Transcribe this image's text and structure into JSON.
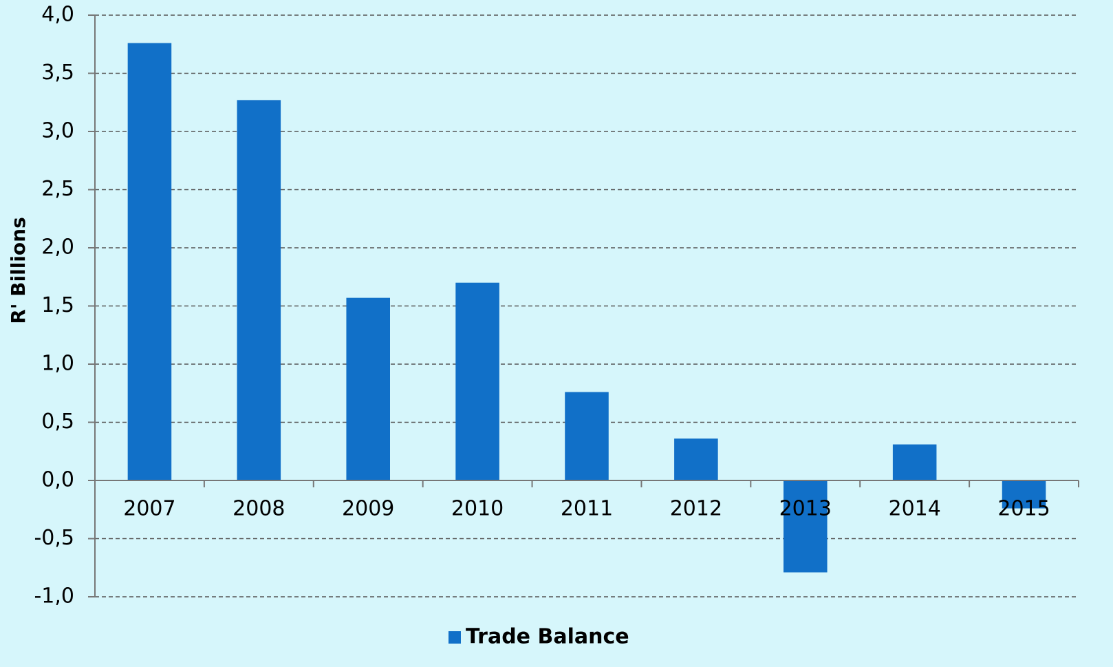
{
  "chart_data": {
    "type": "bar",
    "y_label": "R' Billions",
    "categories": [
      "2007",
      "2008",
      "2009",
      "2010",
      "2011",
      "2012",
      "2013",
      "2014",
      "2015"
    ],
    "series": [
      {
        "name": "Trade Balance",
        "color": "#1170c8",
        "values": [
          3.76,
          3.27,
          1.57,
          1.7,
          0.76,
          0.36,
          -0.79,
          0.31,
          -0.24
        ]
      }
    ],
    "ylim": [
      -1.0,
      4.0
    ],
    "yticks": [
      {
        "value": -1.0,
        "label": "-1,0"
      },
      {
        "value": -0.5,
        "label": "-0,5"
      },
      {
        "value": 0,
        "label": "0,0"
      },
      {
        "value": 0.5,
        "label": "0,5"
      },
      {
        "value": 1.0,
        "label": "1,0"
      },
      {
        "value": 1.5,
        "label": "1,5"
      },
      {
        "value": 2.0,
        "label": "2,0"
      },
      {
        "value": 2.5,
        "label": "2,5"
      },
      {
        "value": 3.0,
        "label": "3,0"
      },
      {
        "value": 3.5,
        "label": "3,5"
      },
      {
        "value": 4.0,
        "label": "4,0"
      }
    ],
    "grid": true,
    "legend": "bottom"
  }
}
